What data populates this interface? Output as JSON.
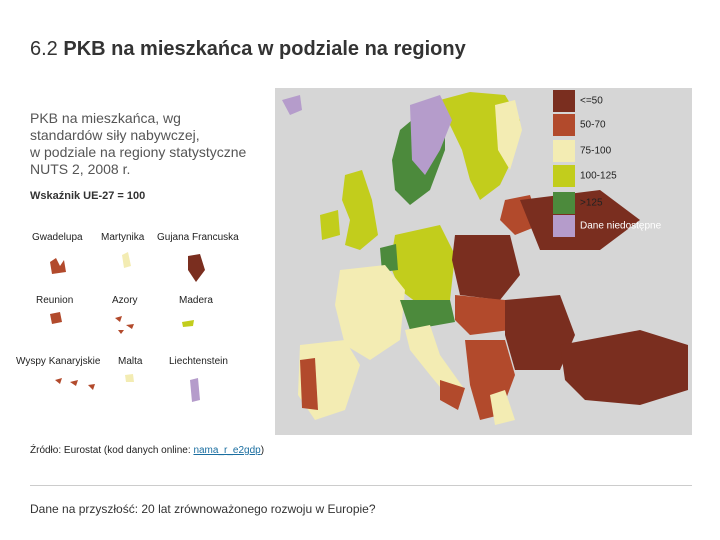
{
  "title": {
    "number": "6.2",
    "text": "PKB na mieszkańca w podziale na regiony"
  },
  "description": {
    "lines": [
      "PKB na mieszkańca, wg",
      "standardów siły nabywczej,",
      "w podziale na regiony statystyczne",
      "NUTS 2, 2008 r."
    ],
    "index": "Wskaźnik UE-27 = 100"
  },
  "legend": [
    {
      "label": "<=50",
      "color": "#7a2e1f"
    },
    {
      "label": "50-70",
      "color": "#b24a2c"
    },
    {
      "label": "75-100",
      "color": "#f3ecb3"
    },
    {
      "label": "100-125",
      "color": "#c2cd1c"
    },
    {
      "label": ">125",
      "color": "#4c8a3c"
    },
    {
      "label": "Dane niedostępne",
      "color": "#b59ccb"
    }
  ],
  "insets": [
    "Gwadelupa",
    "Martynika",
    "Gujana Francuska",
    "Reunion",
    "Azory",
    "Madera",
    "Wyspy Kanaryjskie",
    "Malta",
    "Liechtenstein"
  ],
  "source": {
    "prefix": "Źródło: Eurostat (kod danych online: ",
    "link": "nama_r_e2gdp",
    "suffix": ")"
  },
  "footer": "Dane na przyszłość: 20 lat zrównoważonego rozwoju w Europie?"
}
